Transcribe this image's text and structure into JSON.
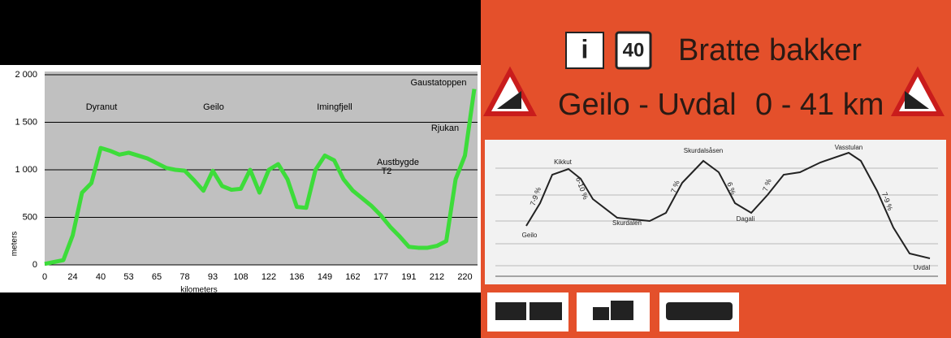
{
  "chart_data": {
    "type": "line",
    "y_label": "meters",
    "x_label": "kilometers",
    "categories": [
      "0",
      null,
      null,
      "24",
      null,
      null,
      "40",
      null,
      null,
      "53",
      null,
      null,
      "65",
      null,
      null,
      "78",
      null,
      null,
      "93",
      null,
      null,
      "108",
      null,
      null,
      "122",
      null,
      null,
      "136",
      null,
      null,
      "149",
      null,
      null,
      "162",
      null,
      null,
      "177",
      null,
      null,
      "191",
      null,
      null,
      "212",
      null,
      null,
      "220",
      null
    ],
    "values": [
      10,
      30,
      50,
      310,
      760,
      860,
      1230,
      1200,
      1160,
      1180,
      1150,
      1120,
      1070,
      1020,
      1000,
      990,
      890,
      780,
      990,
      830,
      790,
      800,
      1000,
      760,
      1000,
      1060,
      900,
      610,
      600,
      1000,
      1150,
      1100,
      900,
      780,
      700,
      620,
      520,
      400,
      300,
      190,
      180,
      180,
      200,
      250,
      900,
      1150,
      1850
    ],
    "color": "#3ddc3a",
    "ylim": [
      0,
      2000
    ],
    "yticks": [
      0,
      500,
      {
        "value": 1000,
        "label": "1 000"
      },
      {
        "value": 1500,
        "label": "1 500"
      },
      {
        "value": 2000,
        "label": "2 000"
      }
    ],
    "grid": true,
    "annotations": [
      "Dyranut",
      "Geilo",
      "Imingfjell",
      "Austbygde",
      "T2",
      "Rjukan",
      "Gaustatoppen"
    ]
  },
  "sign": {
    "info": "i",
    "speed": "40",
    "title": "Bratte bakker",
    "route": "Geilo - Uvdal",
    "distance": "0 - 41 km",
    "places": [
      "Kikkut",
      "Skurdalsåsen",
      "Vasstulan",
      "Skurdalen",
      "Dagali",
      "Geilo",
      "Uvdal"
    ],
    "grades": [
      "7-9 %",
      "6-10 %",
      "7 %",
      "6 %",
      "7 %",
      "7-9 %"
    ]
  }
}
